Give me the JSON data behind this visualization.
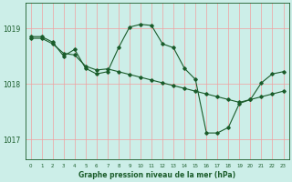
{
  "background_color": "#cceee8",
  "plot_bg_color": "#cceee8",
  "line_color": "#1a5c2a",
  "marker_color": "#1a5c2a",
  "grid_color": "#f0a0a0",
  "xlabel": "Graphe pression niveau de la mer (hPa)",
  "ylim": [
    1016.65,
    1019.45
  ],
  "yticks": [
    1017,
    1018,
    1019
  ],
  "xlim": [
    -0.5,
    23.5
  ],
  "xticks": [
    0,
    1,
    2,
    3,
    4,
    5,
    6,
    7,
    8,
    9,
    10,
    11,
    12,
    13,
    14,
    15,
    16,
    17,
    18,
    19,
    20,
    21,
    22,
    23
  ],
  "series1_x": [
    0,
    1,
    2,
    3,
    4,
    5,
    6,
    7,
    8,
    9,
    10,
    11,
    12,
    13,
    14,
    15,
    16,
    17,
    18,
    19,
    20,
    21,
    22,
    23
  ],
  "series1_y": [
    1018.82,
    1018.82,
    1018.72,
    1018.55,
    1018.52,
    1018.32,
    1018.25,
    1018.27,
    1018.22,
    1018.17,
    1018.12,
    1018.07,
    1018.02,
    1017.97,
    1017.92,
    1017.87,
    1017.82,
    1017.77,
    1017.72,
    1017.67,
    1017.72,
    1017.77,
    1017.82,
    1017.87
  ],
  "series2_x": [
    0,
    1,
    2,
    3,
    4,
    5,
    6,
    7,
    8,
    9,
    10,
    11,
    12,
    13,
    14,
    15,
    16,
    17,
    18,
    19,
    20,
    21,
    22,
    23
  ],
  "series2_y": [
    1018.85,
    1018.85,
    1018.75,
    1018.5,
    1018.62,
    1018.28,
    1018.18,
    1018.22,
    1018.65,
    1019.02,
    1019.07,
    1019.05,
    1018.72,
    1018.65,
    1018.28,
    1018.08,
    1017.12,
    1017.12,
    1017.22,
    1017.65,
    1017.72,
    1018.02,
    1018.18,
    1018.22
  ]
}
